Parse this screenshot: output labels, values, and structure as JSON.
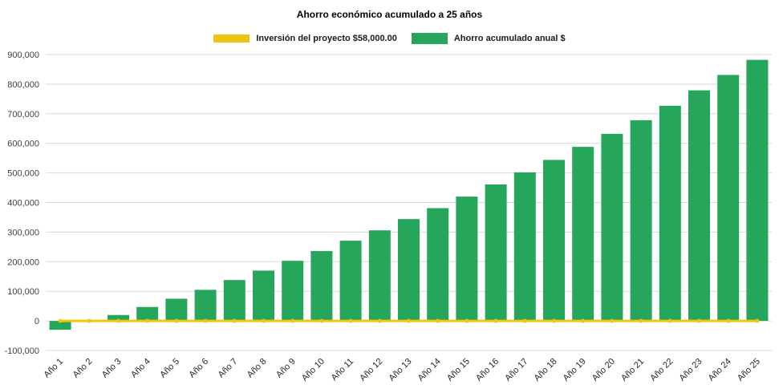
{
  "chart_data": {
    "type": "bar",
    "title": "Ahorro económico acumulado a 25 años",
    "xlabel": "",
    "ylabel": "",
    "categories": [
      "Año 1",
      "Año 2",
      "Año 3",
      "Año 4",
      "Año 5",
      "Año 6",
      "Año 7",
      "Año 8",
      "Año 9",
      "Año 10",
      "Año 11",
      "Año 12",
      "Año 13",
      "Año 14",
      "Año 15",
      "Año 16",
      "Año 17",
      "Año 18",
      "Año 19",
      "Año 20",
      "Año 21",
      "Año 22",
      "Año 23",
      "Año 24",
      "Año 25"
    ],
    "series": [
      {
        "name": "Inversión del proyecto $58,000.00",
        "type": "line",
        "color": "#F1C40F",
        "values": [
          0,
          0,
          0,
          0,
          0,
          0,
          0,
          0,
          0,
          0,
          0,
          0,
          0,
          0,
          0,
          0,
          0,
          0,
          0,
          0,
          0,
          0,
          0,
          0,
          0
        ]
      },
      {
        "name": "Ahorro acumulado anual $",
        "type": "bar",
        "color": "#26A65B",
        "values": [
          -30000,
          -3000,
          20000,
          47000,
          75000,
          105000,
          138000,
          170000,
          203000,
          236000,
          271000,
          306000,
          344000,
          381000,
          420000,
          461000,
          502000,
          544000,
          588000,
          632000,
          678000,
          727000,
          779000,
          831000,
          882000
        ]
      }
    ],
    "ylim": [
      -100000,
      900000
    ],
    "ytick_step": 100000,
    "ytick_labels": [
      "-100,000",
      "0",
      "100,000",
      "200,000",
      "300,000",
      "400,000",
      "500,000",
      "600,000",
      "700,000",
      "800,000",
      "900,000"
    ],
    "grid": true,
    "legend_position": "top"
  }
}
